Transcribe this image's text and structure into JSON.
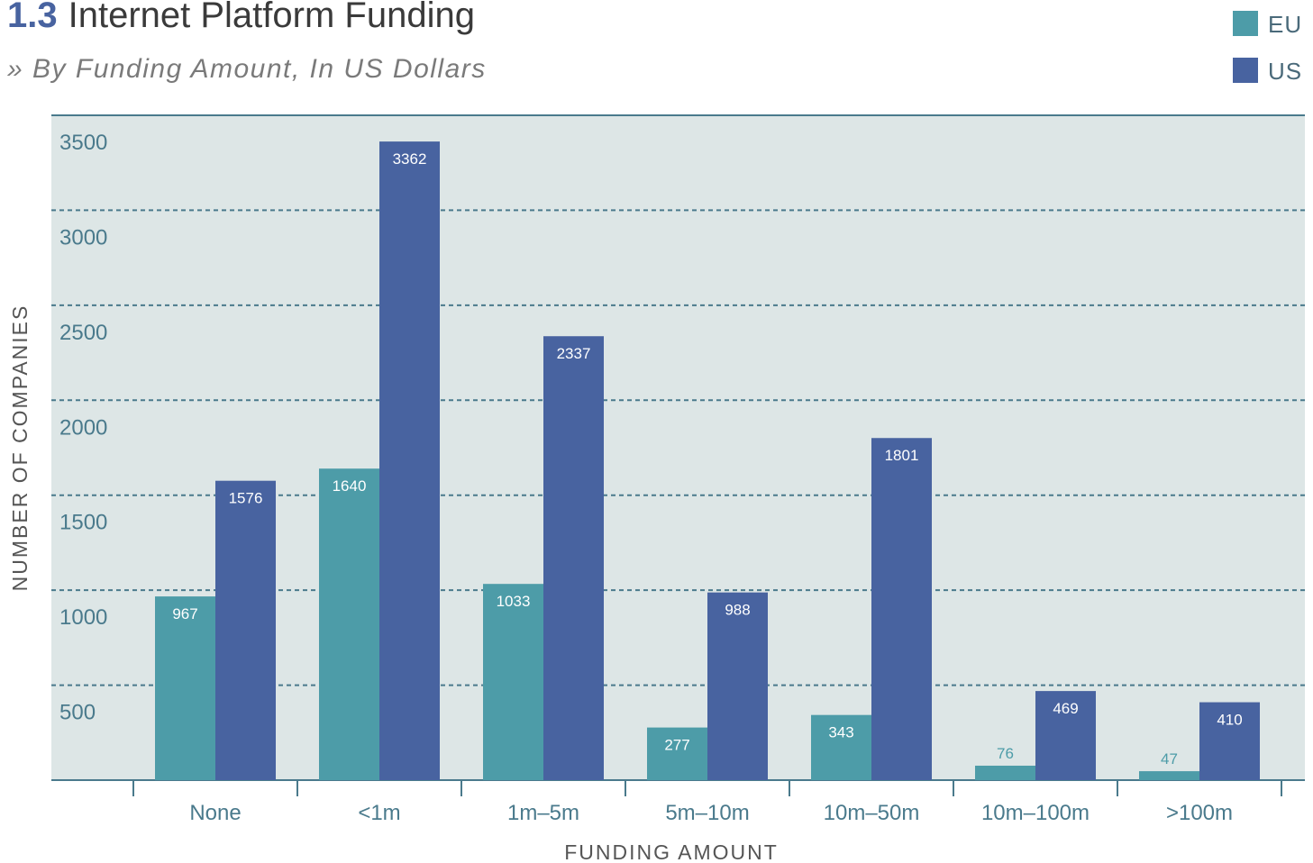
{
  "chart_data": {
    "type": "bar",
    "title_number": "1.3",
    "title": "Internet Platform Funding",
    "subtitle": "» By Funding Amount, In US Dollars",
    "x_label": "FUNDING AMOUNT",
    "y_label": "NUMBER OF COMPANIES",
    "categories": [
      "None",
      "<1m",
      "1m–5m",
      "5m–10m",
      "10m–50m",
      "10m–100m",
      ">100m"
    ],
    "series": [
      {
        "name": "EU",
        "color": "#4d9ca8",
        "values": [
          967,
          1640,
          1033,
          277,
          343,
          76,
          47
        ]
      },
      {
        "name": "US",
        "color": "#4863a0",
        "values": [
          1576,
          3362,
          2337,
          988,
          1801,
          469,
          410
        ]
      }
    ],
    "ylim": [
      0,
      3500
    ],
    "yticks": [
      500,
      1000,
      1500,
      2000,
      2500,
      3000,
      3500
    ],
    "grid": true,
    "legend": "top-right"
  }
}
